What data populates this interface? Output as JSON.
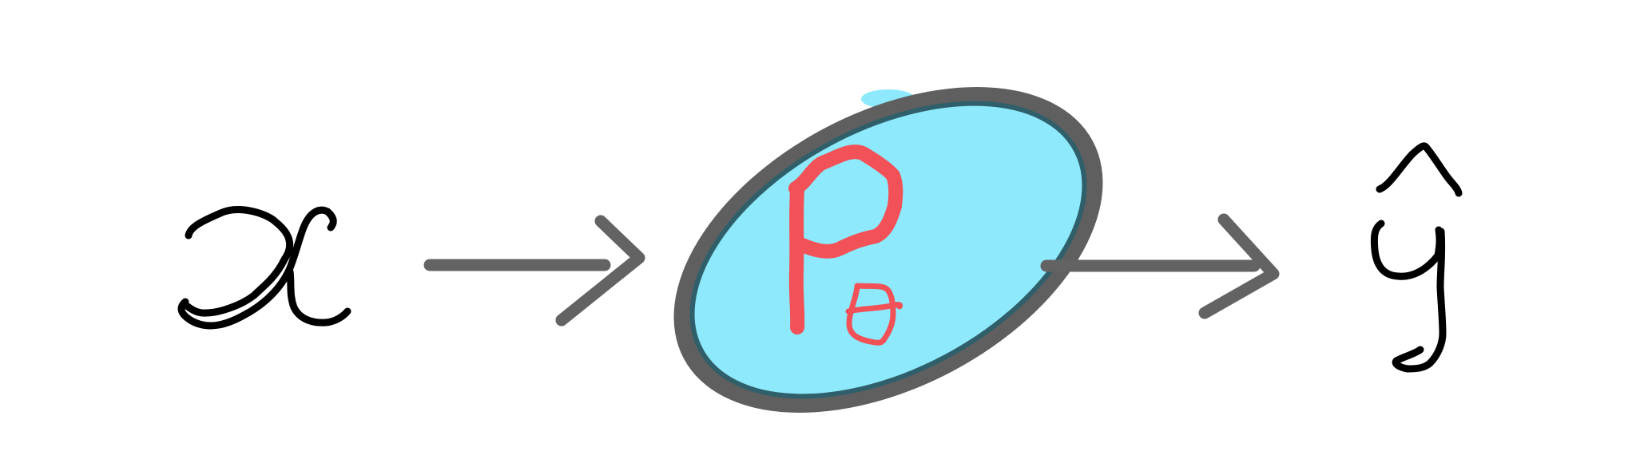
{
  "diagram": {
    "nodes": [
      {
        "id": "input",
        "symbol": "x",
        "style": "handwritten"
      },
      {
        "id": "model",
        "symbol": "P_θ",
        "shape": "ellipse"
      },
      {
        "id": "output",
        "symbol": "ŷ",
        "style": "handwritten"
      }
    ],
    "edges": [
      {
        "from": "input",
        "to": "model"
      },
      {
        "from": "model",
        "to": "output"
      }
    ]
  },
  "colors": {
    "ink": "#000000",
    "arrow": "#636363",
    "node_fill": "#8de9fb",
    "node_outline": "#5f5f5f",
    "node_outline_dark": "#2f5f6a",
    "model_label": "#f25158"
  }
}
